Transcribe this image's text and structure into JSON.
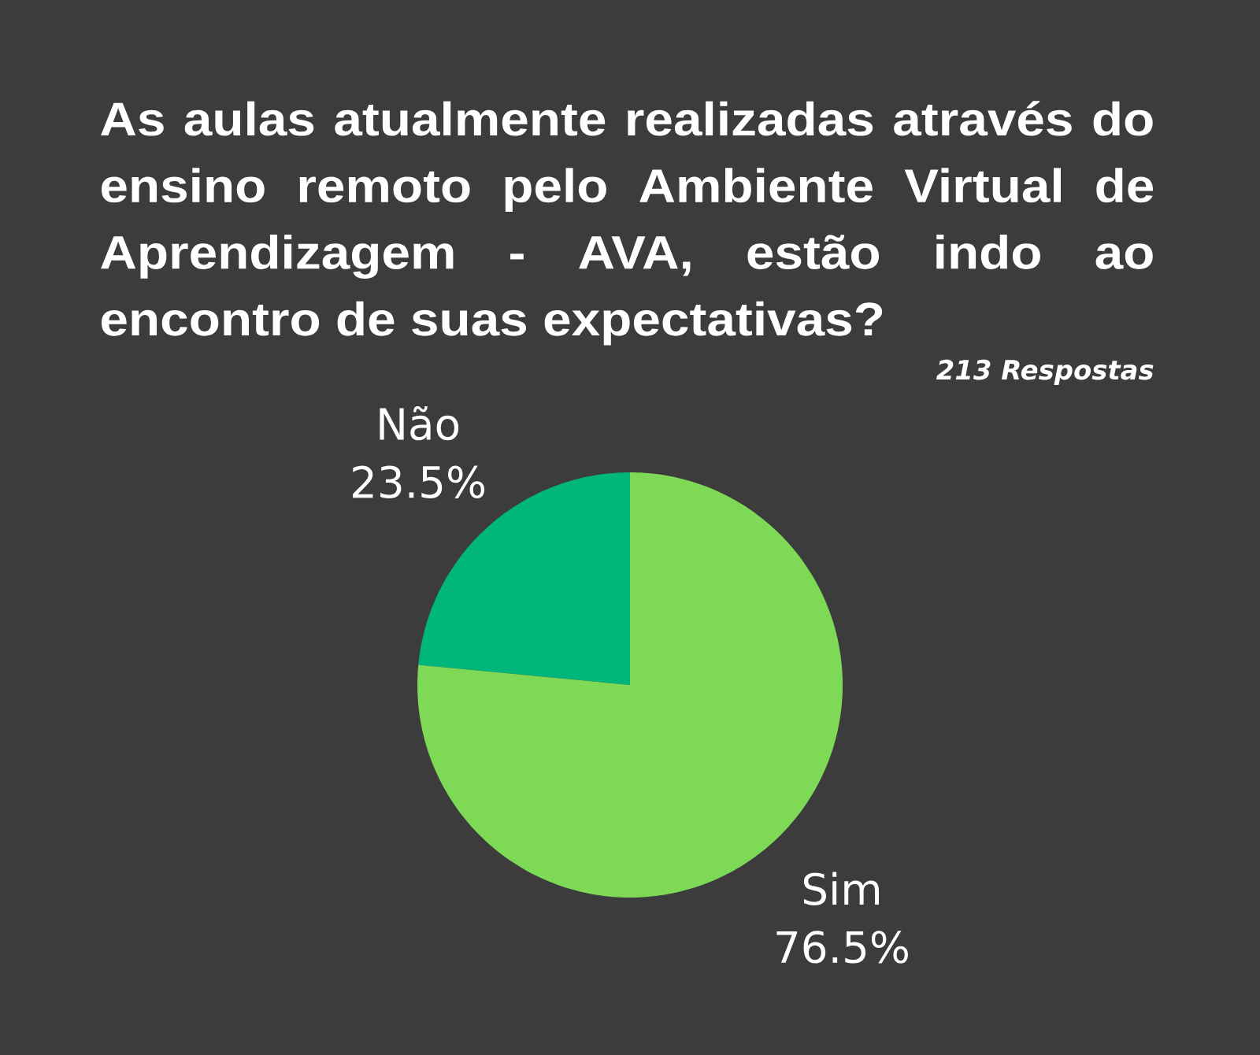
{
  "chart_data": {
    "type": "pie",
    "title": "As aulas atualmente realizadas através do ensino remoto pelo Ambiente Virtual de Aprendizagem - AVA, estão indo ao encontro de suas expectativas?",
    "subtitle": "213 Respostas",
    "categories": [
      "Não",
      "Sim"
    ],
    "values": [
      23.5,
      76.5
    ],
    "colors": [
      "#00b67a",
      "#7ed957"
    ],
    "value_labels": [
      "23.5%",
      "76.5%"
    ]
  }
}
